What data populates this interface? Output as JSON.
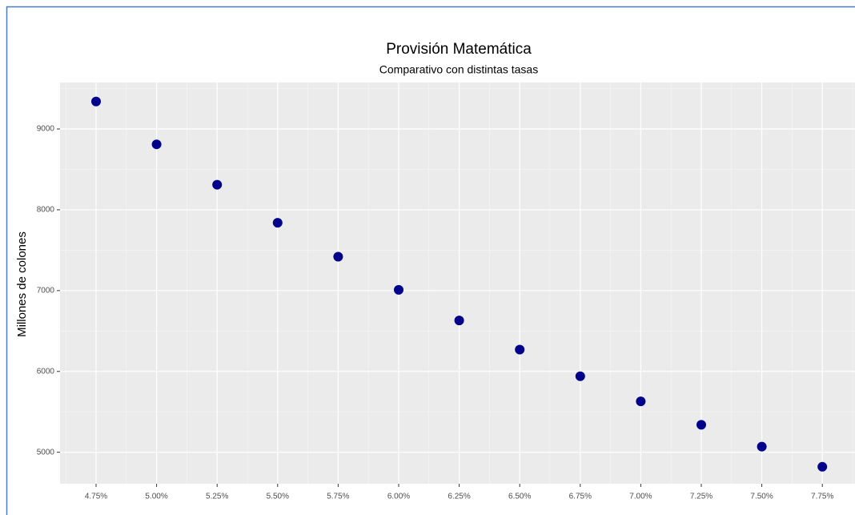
{
  "chart_data": {
    "type": "scatter",
    "title": "Provisión Matemática",
    "subtitle": "Comparativo con distintas tasas",
    "y_label": "Millones de colones",
    "categories": [
      "4.75%",
      "5.00%",
      "5.25%",
      "5.50%",
      "5.75%",
      "6.00%",
      "6.25%",
      "6.50%",
      "6.75%",
      "7.00%",
      "7.25%",
      "7.50%",
      "7.75%"
    ],
    "values": [
      9340,
      8810,
      8310,
      7840,
      7420,
      7010,
      6630,
      6270,
      5940,
      5630,
      5340,
      5070,
      4820
    ],
    "color": "#00008b",
    "ylim": [
      4610,
      9575
    ],
    "yticks": [
      5000,
      6000,
      7000,
      8000,
      9000
    ],
    "grid": true
  }
}
